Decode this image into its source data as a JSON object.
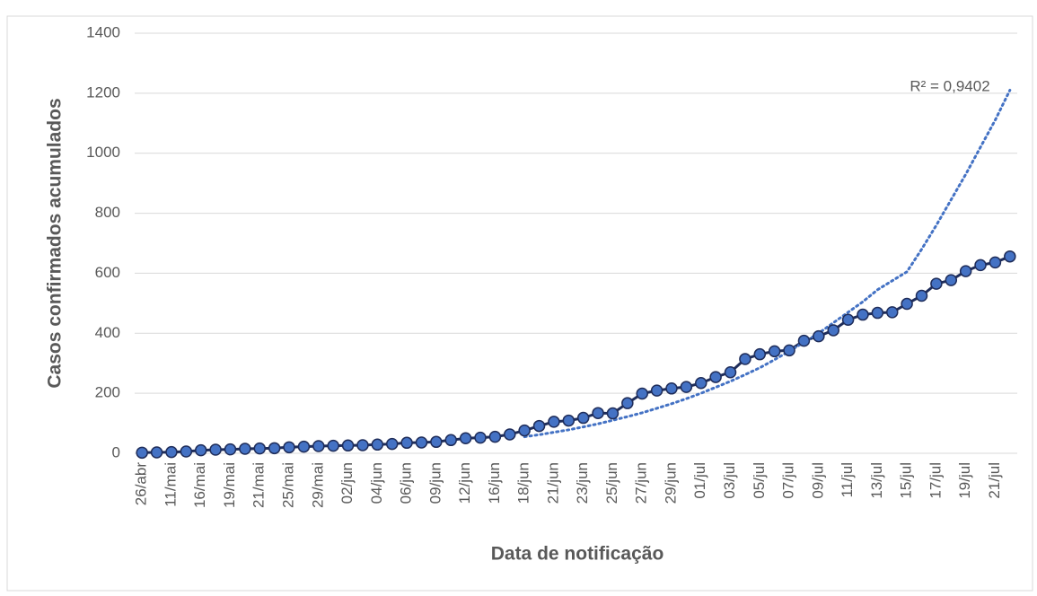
{
  "chart_data": {
    "type": "line",
    "y_label": "Casos confirmados acumulados",
    "x_label": "Data de notificação",
    "annotation": "R² = 0,9402",
    "categories": [
      "26/abr",
      null,
      "11/mai",
      null,
      "16/mai",
      null,
      "19/mai",
      null,
      "21/mai",
      null,
      "25/mai",
      null,
      "29/mai",
      null,
      "02/jun",
      null,
      "04/jun",
      null,
      "06/jun",
      null,
      "09/jun",
      null,
      "12/jun",
      null,
      "16/jun",
      null,
      "18/jun",
      null,
      "21/jun",
      null,
      "23/jun",
      null,
      "25/jun",
      null,
      "27/jun",
      null,
      "29/jun",
      null,
      "01/jul",
      null,
      "03/jul",
      null,
      "05/jul",
      null,
      "07/jul",
      null,
      "09/jul",
      null,
      "11/jul",
      null,
      "13/jul",
      null,
      "15/jul",
      null,
      "17/jul",
      null,
      "19/jul",
      null,
      "21/jul",
      null
    ],
    "series": [
      {
        "color": "#4472c4",
        "line_color": "#1f2d5a",
        "style": "solid-markers",
        "values": [
          2,
          3,
          4,
          6,
          10,
          12,
          13,
          15,
          16,
          17,
          20,
          22,
          24,
          25,
          26,
          27,
          29,
          31,
          35,
          36,
          38,
          44,
          50,
          52,
          55,
          63,
          76,
          91,
          105,
          109,
          118,
          134,
          133,
          167,
          199,
          209,
          216,
          221,
          234,
          254,
          270,
          314,
          330,
          340,
          343,
          375,
          390,
          410,
          445,
          462,
          468,
          470,
          498,
          525,
          565,
          577,
          607,
          627,
          636,
          656
        ]
      },
      {
        "color": "#4472c4",
        "style": "dotted",
        "values": [
          null,
          null,
          null,
          null,
          null,
          null,
          null,
          null,
          null,
          null,
          null,
          null,
          null,
          null,
          null,
          null,
          null,
          null,
          null,
          null,
          null,
          null,
          null,
          null,
          null,
          null,
          55,
          62,
          70,
          78,
          88,
          98,
          110,
          122,
          135,
          150,
          165,
          182,
          200,
          220,
          240,
          262,
          285,
          312,
          340,
          370,
          400,
          435,
          470,
          505,
          545,
          575,
          605,
          680,
          760,
          845,
          930,
          1020,
          1110,
          1210
        ]
      }
    ],
    "ylim": [
      0,
      1400
    ],
    "yticks": [
      0,
      200,
      400,
      600,
      800,
      1000,
      1200,
      1400
    ],
    "grid": true
  }
}
